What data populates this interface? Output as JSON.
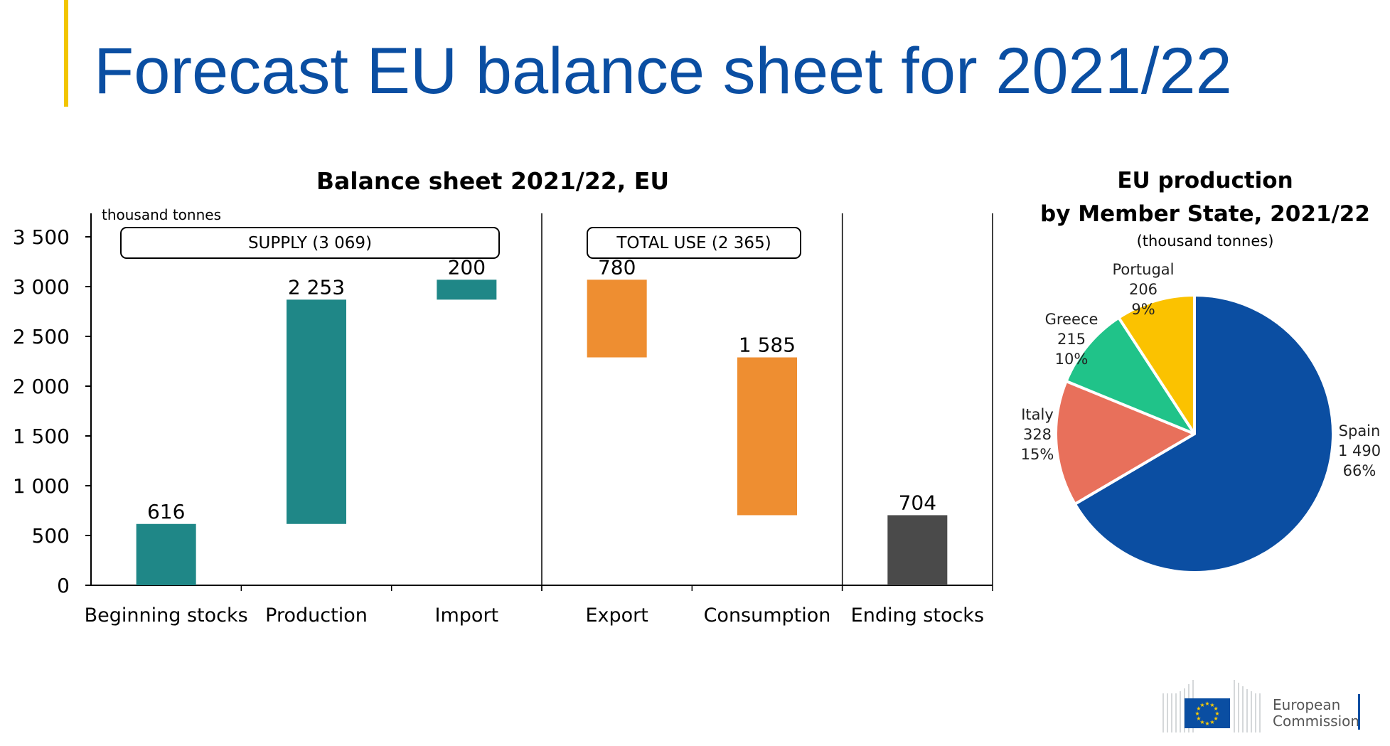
{
  "page": {
    "title": "Forecast EU balance sheet for 2021/22",
    "accent_color": "#f2c500",
    "title_color": "#0a4ea2"
  },
  "chart_data": [
    {
      "type": "bar",
      "subtype": "waterfall",
      "title": "Balance sheet 2021/22, EU",
      "ylabel": "thousand tonnes",
      "ylim": [
        0,
        3500
      ],
      "yticks": [
        "0",
        "500",
        "1 000",
        "1 500",
        "2 000",
        "2 500",
        "3 000",
        "3 500"
      ],
      "grid": false,
      "groups": [
        {
          "label": "SUPPLY (3 069)"
        },
        {
          "label": "TOTAL USE (2 365)"
        }
      ],
      "bars": [
        {
          "category": "Beginning stocks",
          "value": 616,
          "label": "616",
          "base": 0,
          "top": 616,
          "color": "#1f8787"
        },
        {
          "category": "Production",
          "value": 2253,
          "label": "2 253",
          "base": 616,
          "top": 2869,
          "color": "#1f8787"
        },
        {
          "category": "Import",
          "value": 200,
          "label": "200",
          "base": 2869,
          "top": 3069,
          "color": "#1f8787"
        },
        {
          "category": "Export",
          "value": 780,
          "label": "780",
          "base": 2289,
          "top": 3069,
          "color": "#ee8e31"
        },
        {
          "category": "Consumption",
          "value": 1585,
          "label": "1 585",
          "base": 704,
          "top": 2289,
          "color": "#ee8e31"
        },
        {
          "category": "Ending stocks",
          "value": 704,
          "label": "704",
          "base": 0,
          "top": 704,
          "color": "#4a4a4a"
        }
      ]
    },
    {
      "type": "pie",
      "title": "EU production",
      "subtitle": "by Member State, 2021/22",
      "unit": "(thousand tonnes)",
      "slices": [
        {
          "name": "Spain",
          "value": 1490,
          "value_label": "1 490",
          "percent": "66%",
          "color": "#0b4ea2"
        },
        {
          "name": "Italy",
          "value": 328,
          "value_label": "328",
          "percent": "15%",
          "color": "#e8705b"
        },
        {
          "name": "Greece",
          "value": 215,
          "value_label": "215",
          "percent": "10%",
          "color": "#20c389"
        },
        {
          "name": "Portugal",
          "value": 206,
          "value_label": "206",
          "percent": "9%",
          "color": "#fbc200"
        }
      ]
    }
  ],
  "logo": {
    "line1": "European",
    "line2": "Commission",
    "flag_color": "#0a4ea2",
    "star_color": "#ffcc00"
  }
}
